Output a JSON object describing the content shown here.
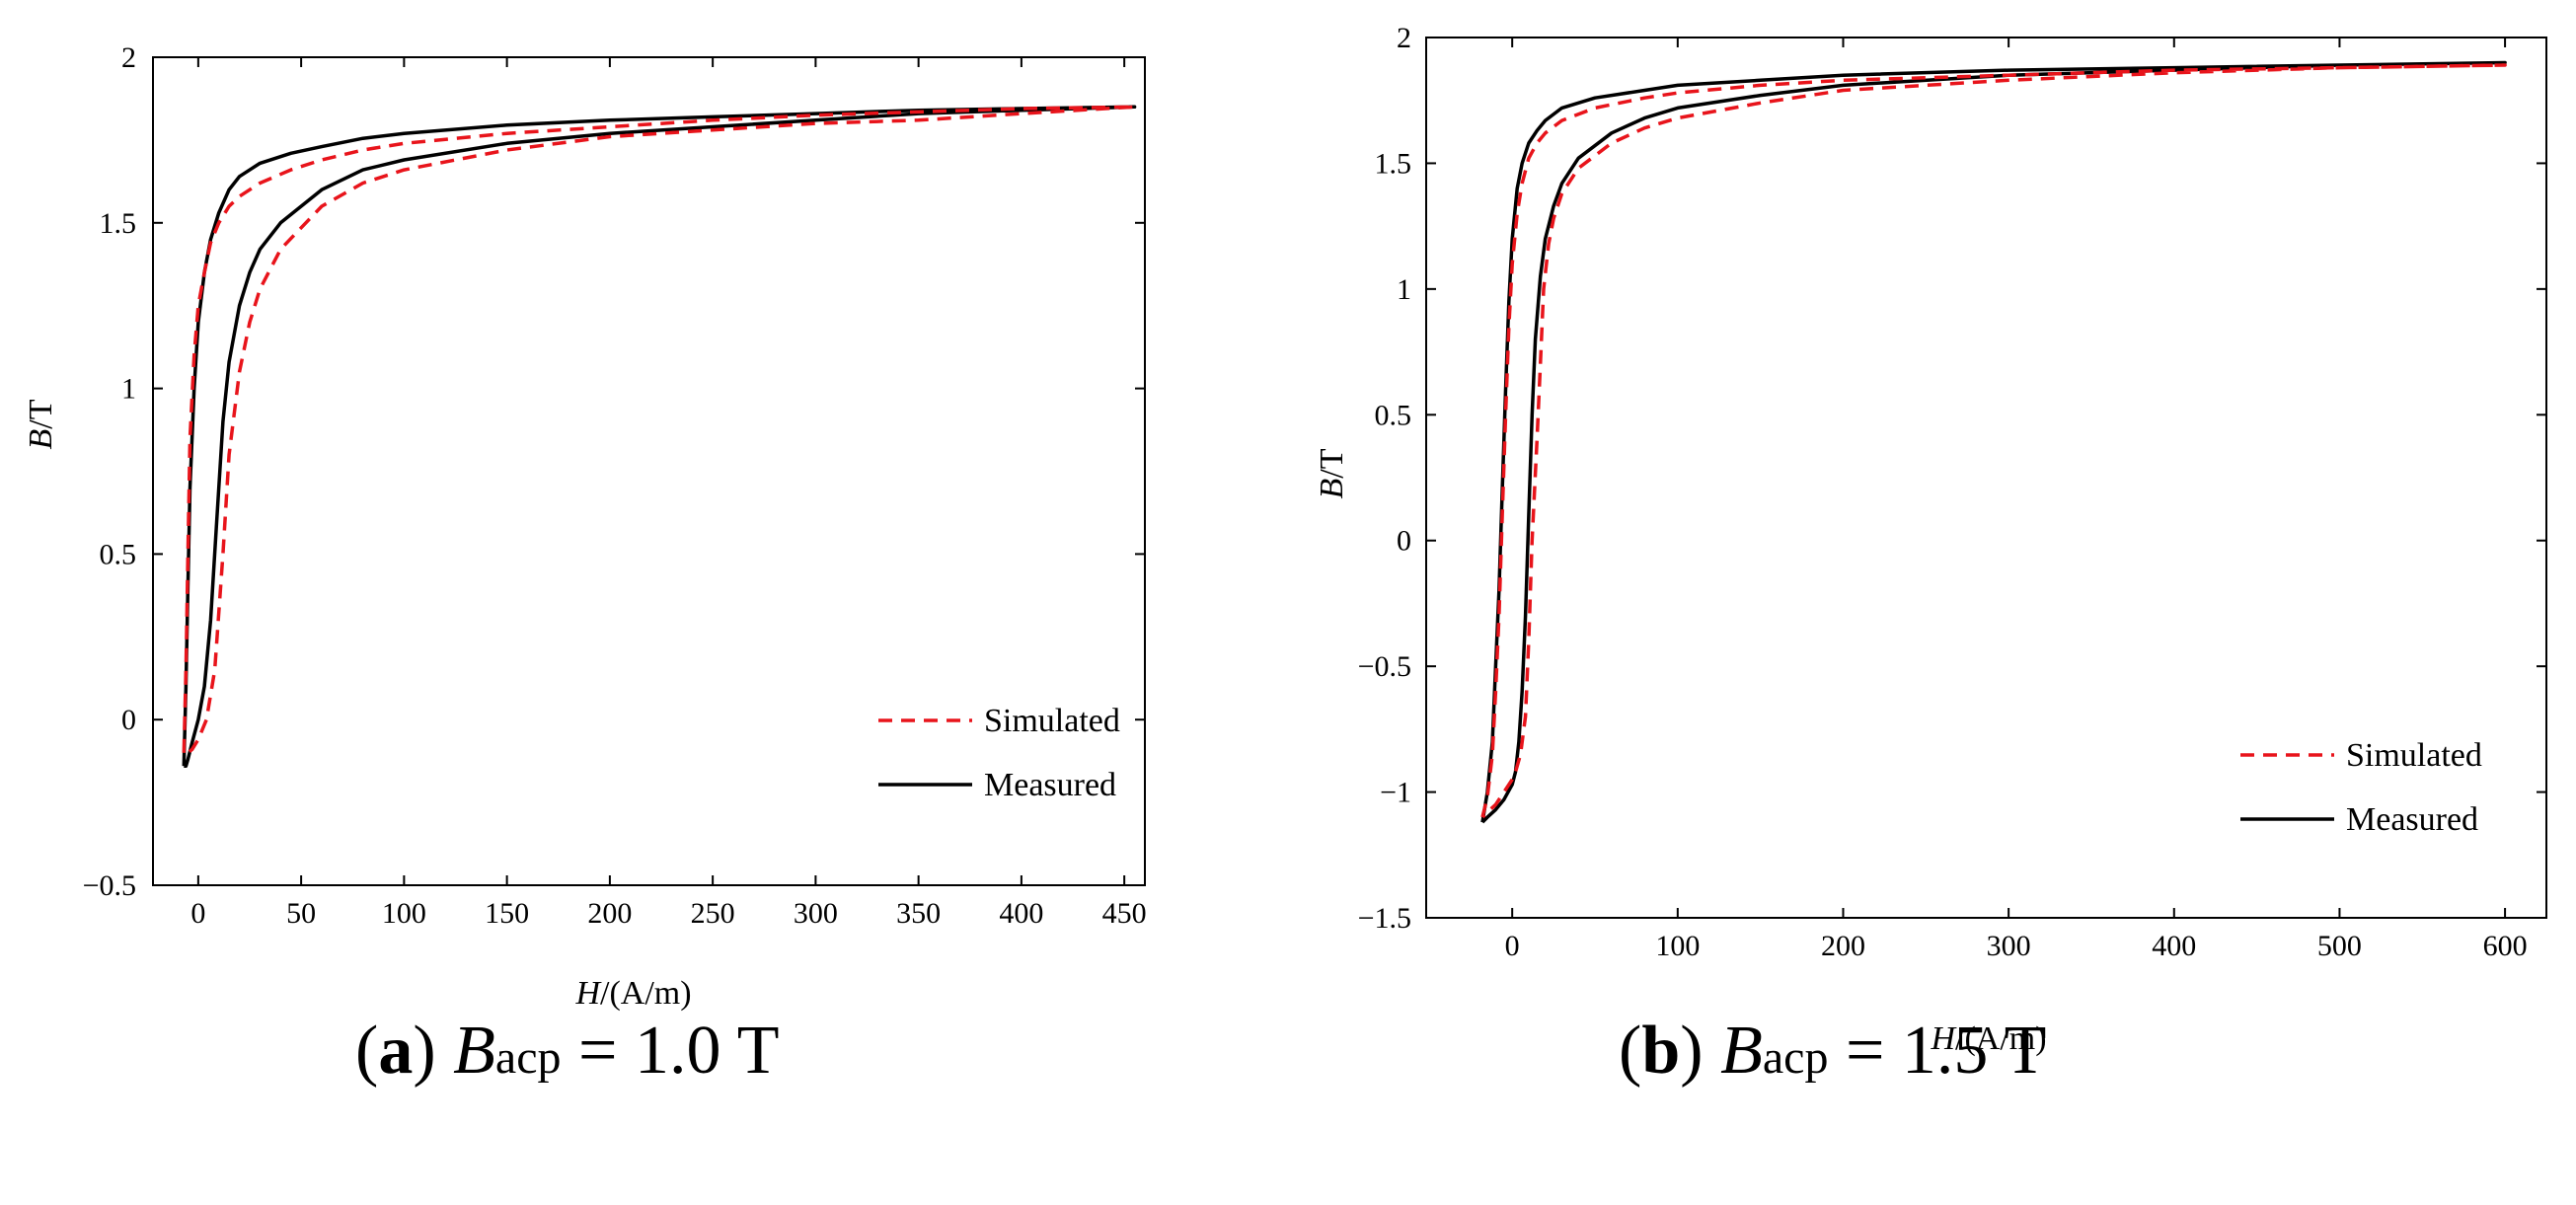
{
  "figures": [
    {
      "caption": {
        "letter": "a",
        "symbol": "B",
        "subscript": "acp",
        "rest": " = 1.0 T"
      }
    },
    {
      "caption": {
        "letter": "b",
        "symbol": "B",
        "subscript": "acp",
        "rest": " = 1.5 T"
      }
    }
  ],
  "chart_data": [
    {
      "type": "line",
      "xlabel": {
        "italic": "H",
        "rest": "/(A/m)"
      },
      "ylabel": {
        "italic": "B",
        "rest": "/T"
      },
      "xlim": [
        -22,
        460
      ],
      "ylim": [
        -0.5,
        2
      ],
      "xticks": [
        0,
        50,
        100,
        150,
        200,
        250,
        300,
        350,
        400,
        450
      ],
      "yticks": [
        -0.5,
        0,
        0.5,
        1,
        1.5,
        2
      ],
      "ytick_labels": [
        "−0.5",
        "0",
        "0.5",
        "1",
        "1.5",
        "2"
      ],
      "legend": {
        "position": "lower-right",
        "entries": [
          "Simulated",
          "Measured"
        ]
      },
      "series": [
        {
          "name": "Measured",
          "style": "solid",
          "color": "#000000",
          "x": [
            -7,
            -6,
            -5,
            -4,
            -2,
            0,
            3,
            6,
            10,
            15,
            20,
            30,
            45,
            60,
            80,
            100,
            150,
            200,
            250,
            300,
            350,
            400,
            455,
            400,
            350,
            300,
            250,
            200,
            150,
            100,
            80,
            60,
            40,
            30,
            25,
            20,
            15,
            12,
            9,
            6,
            3,
            0,
            -3,
            -5,
            -6,
            -7
          ],
          "y": [
            -0.14,
            0.1,
            0.4,
            0.7,
            1.0,
            1.2,
            1.35,
            1.45,
            1.53,
            1.6,
            1.64,
            1.68,
            1.71,
            1.73,
            1.755,
            1.77,
            1.795,
            1.81,
            1.82,
            1.83,
            1.84,
            1.845,
            1.85,
            1.84,
            1.83,
            1.81,
            1.79,
            1.77,
            1.74,
            1.69,
            1.66,
            1.6,
            1.5,
            1.42,
            1.35,
            1.25,
            1.08,
            0.9,
            0.6,
            0.3,
            0.1,
            0.0,
            -0.07,
            -0.12,
            -0.14,
            -0.14
          ]
        },
        {
          "name": "Simulated",
          "style": "dashed",
          "color": "#e8141b",
          "x": [
            -7,
            -6,
            -5,
            -4,
            -2,
            0,
            3,
            6,
            10,
            15,
            20,
            30,
            45,
            60,
            80,
            100,
            150,
            200,
            250,
            300,
            350,
            400,
            455,
            400,
            350,
            300,
            250,
            200,
            150,
            100,
            80,
            60,
            40,
            30,
            25,
            20,
            15,
            12,
            8,
            4,
            0,
            -3,
            -5,
            -7
          ],
          "y": [
            -0.1,
            0.15,
            0.5,
            0.85,
            1.1,
            1.25,
            1.35,
            1.44,
            1.5,
            1.55,
            1.58,
            1.62,
            1.66,
            1.69,
            1.72,
            1.74,
            1.77,
            1.79,
            1.81,
            1.825,
            1.835,
            1.845,
            1.85,
            1.83,
            1.81,
            1.8,
            1.78,
            1.76,
            1.72,
            1.66,
            1.62,
            1.55,
            1.42,
            1.3,
            1.2,
            1.05,
            0.8,
            0.5,
            0.15,
            0.0,
            -0.06,
            -0.09,
            -0.1,
            -0.1
          ]
        }
      ]
    },
    {
      "type": "line",
      "xlabel": {
        "italic": "H",
        "rest": "/(A/m)"
      },
      "ylabel": {
        "italic": "B",
        "rest": "/T"
      },
      "xlim": [
        -52,
        625
      ],
      "ylim": [
        -1.5,
        2
      ],
      "xticks": [
        0,
        100,
        200,
        300,
        400,
        500,
        600
      ],
      "yticks": [
        -1.5,
        -1,
        -0.5,
        0,
        0.5,
        1,
        1.5,
        2
      ],
      "ytick_labels": [
        "−1.5",
        "−1",
        "−0.5",
        "0",
        "0.5",
        "1",
        "1.5",
        "2"
      ],
      "legend": {
        "position": "lower-right",
        "entries": [
          "Simulated",
          "Measured"
        ]
      },
      "series": [
        {
          "name": "Measured",
          "style": "solid",
          "color": "#000000",
          "x": [
            -18,
            -15,
            -12,
            -10,
            -8,
            -6,
            -4,
            -2,
            0,
            3,
            6,
            10,
            15,
            20,
            30,
            50,
            80,
            100,
            150,
            200,
            300,
            400,
            500,
            600,
            500,
            400,
            300,
            200,
            150,
            100,
            80,
            60,
            40,
            30,
            25,
            20,
            17,
            14,
            12,
            10,
            8,
            6,
            4,
            2,
            0,
            -5,
            -10,
            -15,
            -18
          ],
          "y": [
            -1.12,
            -1.0,
            -0.8,
            -0.5,
            -0.2,
            0.2,
            0.6,
            0.95,
            1.2,
            1.4,
            1.5,
            1.58,
            1.63,
            1.67,
            1.72,
            1.76,
            1.79,
            1.81,
            1.83,
            1.85,
            1.87,
            1.88,
            1.89,
            1.9,
            1.89,
            1.87,
            1.85,
            1.81,
            1.77,
            1.72,
            1.68,
            1.62,
            1.52,
            1.42,
            1.33,
            1.2,
            1.05,
            0.8,
            0.5,
            0.1,
            -0.3,
            -0.6,
            -0.8,
            -0.92,
            -0.97,
            -1.03,
            -1.07,
            -1.1,
            -1.12
          ]
        },
        {
          "name": "Simulated",
          "style": "dashed",
          "color": "#e8141b",
          "x": [
            -18,
            -15,
            -12,
            -10,
            -8,
            -6,
            -4,
            -2,
            0,
            3,
            6,
            10,
            15,
            20,
            30,
            50,
            80,
            100,
            150,
            200,
            300,
            400,
            500,
            600,
            500,
            400,
            300,
            200,
            150,
            100,
            80,
            60,
            40,
            30,
            25,
            22,
            19,
            17,
            15,
            12,
            10,
            8,
            5,
            2,
            0,
            -5,
            -10,
            -15,
            -18
          ],
          "y": [
            -1.1,
            -1.02,
            -0.85,
            -0.6,
            -0.3,
            0.1,
            0.5,
            0.85,
            1.1,
            1.3,
            1.42,
            1.52,
            1.58,
            1.62,
            1.67,
            1.72,
            1.76,
            1.78,
            1.81,
            1.83,
            1.85,
            1.87,
            1.88,
            1.89,
            1.88,
            1.86,
            1.83,
            1.79,
            1.74,
            1.68,
            1.64,
            1.58,
            1.48,
            1.38,
            1.28,
            1.18,
            1.0,
            0.7,
            0.4,
            0.0,
            -0.4,
            -0.7,
            -0.85,
            -0.92,
            -0.95,
            -1.0,
            -1.05,
            -1.08,
            -1.1
          ]
        }
      ]
    }
  ]
}
